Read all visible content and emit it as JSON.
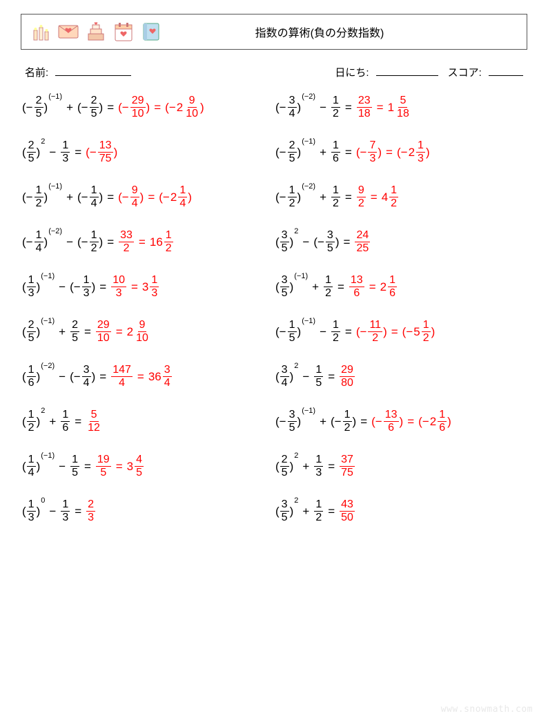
{
  "header": {
    "title": "指数の算術(負の分数指数)"
  },
  "meta": {
    "name_label": "名前:",
    "date_label": "日にち:",
    "score_label": "スコア:"
  },
  "watermark": "www.snowmath.com",
  "colors": {
    "answer": "#ff0000",
    "text": "#000000",
    "background": "#ffffff",
    "border": "#555555",
    "watermark": "#e8e8e8"
  },
  "icons": [
    {
      "name": "candles"
    },
    {
      "name": "love-letter"
    },
    {
      "name": "cake"
    },
    {
      "name": "calendar-heart"
    },
    {
      "name": "book-heart"
    }
  ],
  "problems": {
    "left": [
      {
        "base": {
          "sign": "-",
          "num": "2",
          "den": "5"
        },
        "exp": "(−1)",
        "op": "+",
        "second": {
          "paren": true,
          "sign": "−",
          "num": "2",
          "den": "5"
        },
        "ans1": {
          "paren": true,
          "sign": "−",
          "num": "29",
          "den": "10"
        },
        "ans2": {
          "paren": true,
          "whole_sign": "−",
          "whole": "2",
          "num": "9",
          "den": "10"
        }
      },
      {
        "base": {
          "sign": "",
          "num": "2",
          "den": "5"
        },
        "exp": "2",
        "op": "−",
        "second": {
          "paren": false,
          "sign": "",
          "num": "1",
          "den": "3"
        },
        "ans1": {
          "paren": true,
          "sign": "−",
          "num": "13",
          "den": "75"
        }
      },
      {
        "base": {
          "sign": "-",
          "num": "1",
          "den": "2"
        },
        "exp": "(−1)",
        "op": "+",
        "second": {
          "paren": true,
          "sign": "−",
          "num": "1",
          "den": "4"
        },
        "ans1": {
          "paren": true,
          "sign": "−",
          "num": "9",
          "den": "4"
        },
        "ans2": {
          "paren": true,
          "whole_sign": "−",
          "whole": "2",
          "num": "1",
          "den": "4"
        }
      },
      {
        "base": {
          "sign": "-",
          "num": "1",
          "den": "4"
        },
        "exp": "(−2)",
        "op": "−",
        "second": {
          "paren": true,
          "sign": "−",
          "num": "1",
          "den": "2"
        },
        "ans1": {
          "paren": false,
          "sign": "",
          "num": "33",
          "den": "2"
        },
        "ans2": {
          "paren": false,
          "whole_sign": "",
          "whole": "16",
          "num": "1",
          "den": "2"
        }
      },
      {
        "base": {
          "sign": "",
          "num": "1",
          "den": "3"
        },
        "exp": "(−1)",
        "op": "−",
        "second": {
          "paren": true,
          "sign": "−",
          "num": "1",
          "den": "3"
        },
        "ans1": {
          "paren": false,
          "sign": "",
          "num": "10",
          "den": "3"
        },
        "ans2": {
          "paren": false,
          "whole_sign": "",
          "whole": "3",
          "num": "1",
          "den": "3"
        }
      },
      {
        "base": {
          "sign": "",
          "num": "2",
          "den": "5"
        },
        "exp": "(−1)",
        "op": "+",
        "second": {
          "paren": false,
          "sign": "",
          "num": "2",
          "den": "5"
        },
        "ans1": {
          "paren": false,
          "sign": "",
          "num": "29",
          "den": "10"
        },
        "ans2": {
          "paren": false,
          "whole_sign": "",
          "whole": "2",
          "num": "9",
          "den": "10"
        }
      },
      {
        "base": {
          "sign": "",
          "num": "1",
          "den": "6"
        },
        "exp": "(−2)",
        "op": "−",
        "second": {
          "paren": true,
          "sign": "−",
          "num": "3",
          "den": "4"
        },
        "ans1": {
          "paren": false,
          "sign": "",
          "num": "147",
          "den": "4"
        },
        "ans2": {
          "paren": false,
          "whole_sign": "",
          "whole": "36",
          "num": "3",
          "den": "4"
        }
      },
      {
        "base": {
          "sign": "",
          "num": "1",
          "den": "2"
        },
        "exp": "2",
        "op": "+",
        "second": {
          "paren": false,
          "sign": "",
          "num": "1",
          "den": "6"
        },
        "ans1": {
          "paren": false,
          "sign": "",
          "num": "5",
          "den": "12"
        }
      },
      {
        "base": {
          "sign": "",
          "num": "1",
          "den": "4"
        },
        "exp": "(−1)",
        "op": "−",
        "second": {
          "paren": false,
          "sign": "",
          "num": "1",
          "den": "5"
        },
        "ans1": {
          "paren": false,
          "sign": "",
          "num": "19",
          "den": "5"
        },
        "ans2": {
          "paren": false,
          "whole_sign": "",
          "whole": "3",
          "num": "4",
          "den": "5"
        }
      },
      {
        "base": {
          "sign": "",
          "num": "1",
          "den": "3"
        },
        "exp": "0",
        "op": "−",
        "second": {
          "paren": false,
          "sign": "",
          "num": "1",
          "den": "3"
        },
        "ans1": {
          "paren": false,
          "sign": "",
          "num": "2",
          "den": "3"
        }
      }
    ],
    "right": [
      {
        "base": {
          "sign": "-",
          "num": "3",
          "den": "4"
        },
        "exp": "(−2)",
        "op": "−",
        "second": {
          "paren": false,
          "sign": "",
          "num": "1",
          "den": "2"
        },
        "ans1": {
          "paren": false,
          "sign": "",
          "num": "23",
          "den": "18"
        },
        "ans2": {
          "paren": false,
          "whole_sign": "",
          "whole": "1",
          "num": "5",
          "den": "18"
        }
      },
      {
        "base": {
          "sign": "-",
          "num": "2",
          "den": "5"
        },
        "exp": "(−1)",
        "op": "+",
        "second": {
          "paren": false,
          "sign": "",
          "num": "1",
          "den": "6"
        },
        "ans1": {
          "paren": true,
          "sign": "−",
          "num": "7",
          "den": "3"
        },
        "ans2": {
          "paren": true,
          "whole_sign": "−",
          "whole": "2",
          "num": "1",
          "den": "3"
        }
      },
      {
        "base": {
          "sign": "-",
          "num": "1",
          "den": "2"
        },
        "exp": "(−2)",
        "op": "+",
        "second": {
          "paren": false,
          "sign": "",
          "num": "1",
          "den": "2"
        },
        "ans1": {
          "paren": false,
          "sign": "",
          "num": "9",
          "den": "2"
        },
        "ans2": {
          "paren": false,
          "whole_sign": "",
          "whole": "4",
          "num": "1",
          "den": "2"
        }
      },
      {
        "base": {
          "sign": "",
          "num": "3",
          "den": "5"
        },
        "exp": "2",
        "op": "−",
        "second": {
          "paren": true,
          "sign": "−",
          "num": "3",
          "den": "5"
        },
        "ans1": {
          "paren": false,
          "sign": "",
          "num": "24",
          "den": "25"
        }
      },
      {
        "base": {
          "sign": "",
          "num": "3",
          "den": "5"
        },
        "exp": "(−1)",
        "op": "+",
        "second": {
          "paren": false,
          "sign": "",
          "num": "1",
          "den": "2"
        },
        "ans1": {
          "paren": false,
          "sign": "",
          "num": "13",
          "den": "6"
        },
        "ans2": {
          "paren": false,
          "whole_sign": "",
          "whole": "2",
          "num": "1",
          "den": "6"
        }
      },
      {
        "base": {
          "sign": "-",
          "num": "1",
          "den": "5"
        },
        "exp": "(−1)",
        "op": "−",
        "second": {
          "paren": false,
          "sign": "",
          "num": "1",
          "den": "2"
        },
        "ans1": {
          "paren": true,
          "sign": "−",
          "num": "11",
          "den": "2"
        },
        "ans2": {
          "paren": true,
          "whole_sign": "−",
          "whole": "5",
          "num": "1",
          "den": "2"
        }
      },
      {
        "base": {
          "sign": "",
          "num": "3",
          "den": "4"
        },
        "exp": "2",
        "op": "−",
        "second": {
          "paren": false,
          "sign": "",
          "num": "1",
          "den": "5"
        },
        "ans1": {
          "paren": false,
          "sign": "",
          "num": "29",
          "den": "80"
        }
      },
      {
        "base": {
          "sign": "-",
          "num": "3",
          "den": "5"
        },
        "exp": "(−1)",
        "op": "+",
        "second": {
          "paren": true,
          "sign": "−",
          "num": "1",
          "den": "2"
        },
        "ans1": {
          "paren": true,
          "sign": "−",
          "num": "13",
          "den": "6"
        },
        "ans2": {
          "paren": true,
          "whole_sign": "−",
          "whole": "2",
          "num": "1",
          "den": "6"
        }
      },
      {
        "base": {
          "sign": "",
          "num": "2",
          "den": "5"
        },
        "exp": "2",
        "op": "+",
        "second": {
          "paren": false,
          "sign": "",
          "num": "1",
          "den": "3"
        },
        "ans1": {
          "paren": false,
          "sign": "",
          "num": "37",
          "den": "75"
        }
      },
      {
        "base": {
          "sign": "",
          "num": "3",
          "den": "5"
        },
        "exp": "2",
        "op": "+",
        "second": {
          "paren": false,
          "sign": "",
          "num": "1",
          "den": "2"
        },
        "ans1": {
          "paren": false,
          "sign": "",
          "num": "43",
          "den": "50"
        }
      }
    ]
  }
}
